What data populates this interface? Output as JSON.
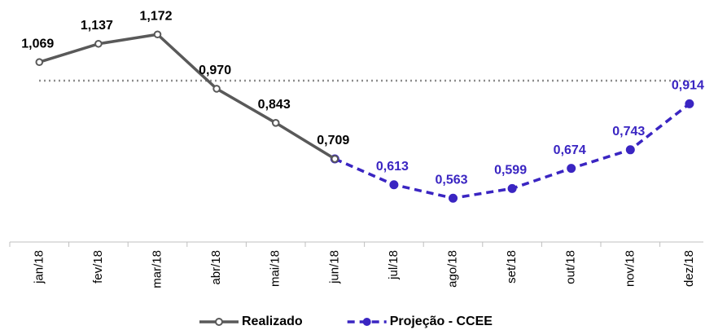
{
  "chart_data": {
    "type": "line",
    "categories": [
      "jan/18",
      "fev/18",
      "mar/18",
      "abr/18",
      "mai/18",
      "jun/18",
      "jul/18",
      "ago/18",
      "set/18",
      "out/18",
      "nov/18",
      "dez/18"
    ],
    "series": [
      {
        "name": "Realizado",
        "color": "#595959",
        "dashed": false,
        "values": [
          1.069,
          1.137,
          1.172,
          0.97,
          0.843,
          0.709,
          null,
          null,
          null,
          null,
          null,
          null
        ],
        "value_labels": [
          "1,069",
          "1,137",
          "1,172",
          "0,970",
          "0,843",
          "0,709",
          null,
          null,
          null,
          null,
          null,
          null
        ]
      },
      {
        "name": "Projeção - CCEE",
        "color": "#3a25c2",
        "dashed": true,
        "values": [
          null,
          null,
          null,
          null,
          null,
          0.709,
          0.613,
          0.563,
          0.599,
          0.674,
          0.743,
          0.914
        ],
        "value_labels": [
          null,
          null,
          null,
          null,
          null,
          null,
          "0,613",
          "0,563",
          "0,599",
          "0,674",
          "0,743",
          "0,914"
        ]
      }
    ],
    "ylim": [
      0.4,
      1.3
    ],
    "reference_line": 1,
    "legend": "bottom"
  }
}
